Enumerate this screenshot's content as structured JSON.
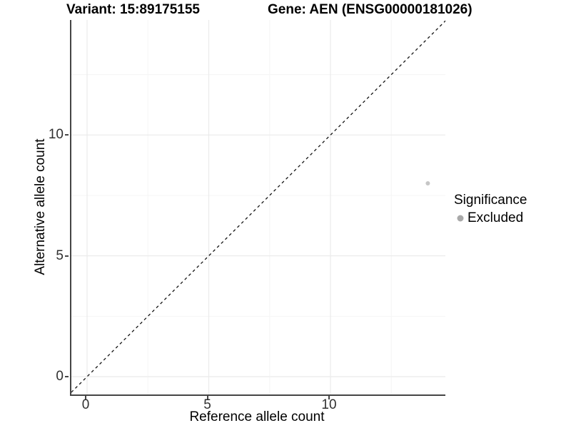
{
  "legend": {
    "title": "Significance",
    "items": [
      {
        "label": "Excluded",
        "color": "#a9a9a9"
      }
    ]
  },
  "chart_data": {
    "type": "scatter",
    "title_left": "Variant: 15:89175155",
    "title_right": "Gene: AEN (ENSG00000181026)",
    "xlabel": "Reference allele count",
    "ylabel": "Alternative allele count",
    "xlim": [
      -0.65,
      14.75
    ],
    "ylim": [
      -0.74,
      14.75
    ],
    "x_ticks": [
      0,
      5,
      10
    ],
    "y_ticks": [
      0,
      5,
      10
    ],
    "x_tick_labels": [
      "0",
      "5",
      "10"
    ],
    "y_tick_labels": [
      "0",
      "5",
      "10"
    ],
    "grid": "major and minor gridlines, light gray, on white panel",
    "legend_position": "right",
    "reference_line": {
      "style": "dashed",
      "equation": "y = x",
      "color": "#141414"
    },
    "series": [
      {
        "name": "Excluded",
        "marker": "circle",
        "color": "#c6c6c6",
        "points": [
          [
            14,
            8
          ]
        ]
      }
    ],
    "colors": {
      "major_grid": "#ebebeb",
      "minor_grid": "#f5f5f5",
      "axis_line": "#454545",
      "tick_text": "#303030"
    }
  }
}
